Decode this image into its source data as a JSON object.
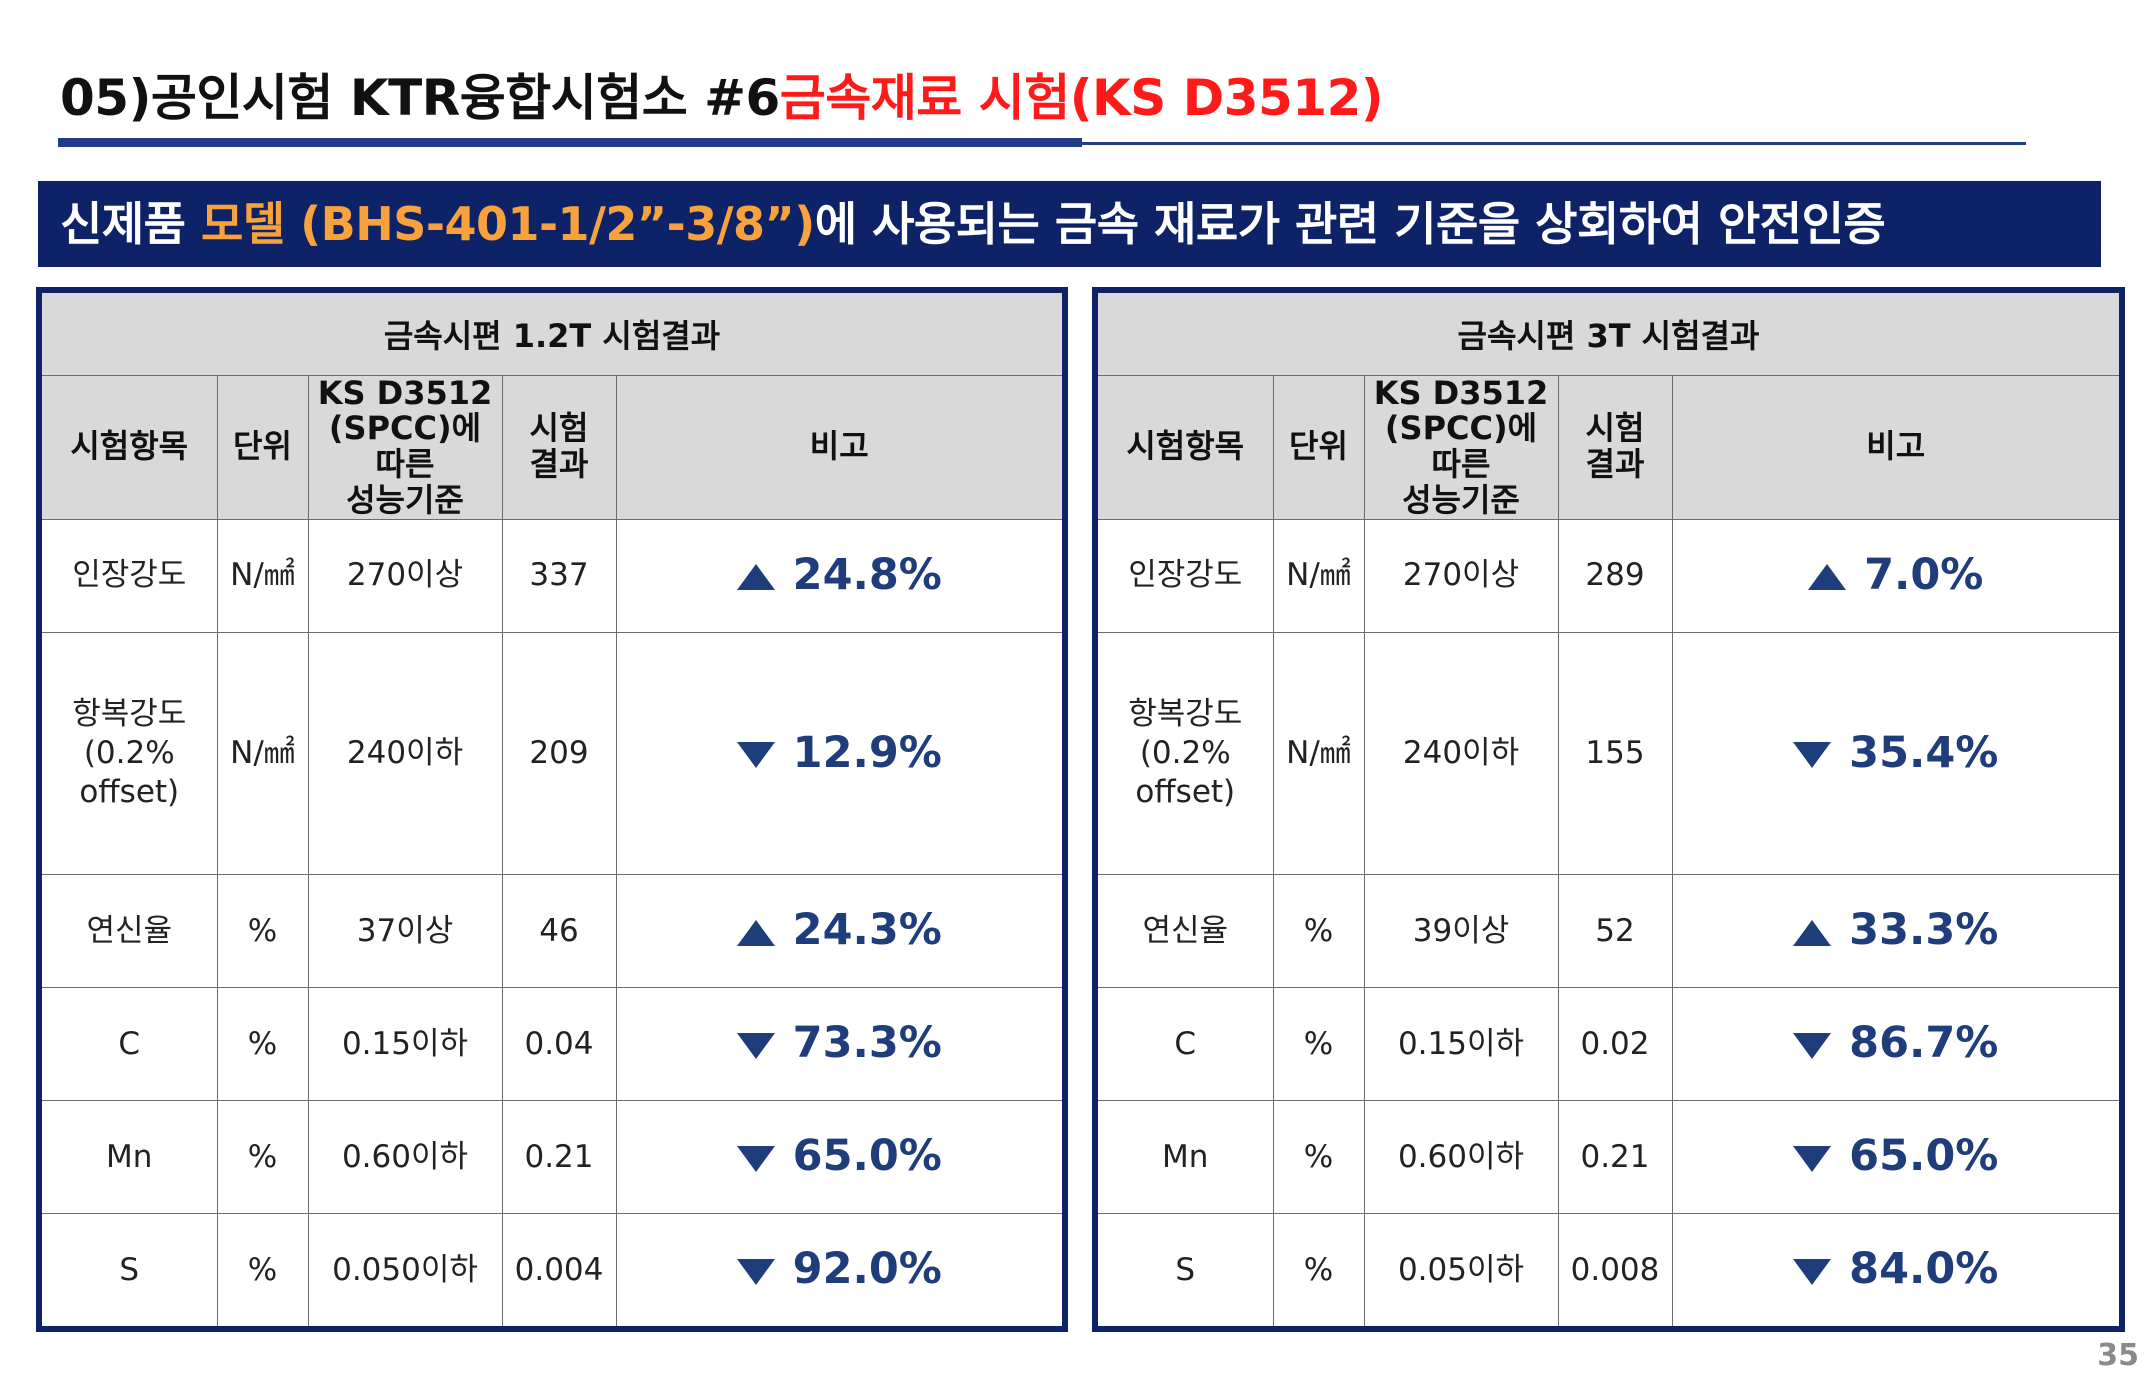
{
  "title": {
    "prefix": "05)공인시험 KTR융합시험소 #6",
    "highlight": "금속재료 시험(KS D3512)"
  },
  "banner": {
    "part1": "신제품 ",
    "model": "모델 (BHS-401-1/2”-3/8”)",
    "part2": "에 사용되는 금속 재료가 관련 기준을 상회하여 안전인증"
  },
  "columns": {
    "item": "시험항목",
    "unit": "단위",
    "std_line1": "KS D3512",
    "std_line2": "(SPCC)에 따른",
    "std_line3": "성능기준",
    "result_line1": "시험",
    "result_line2": "결과",
    "note": "비고"
  },
  "tables": [
    {
      "caption": "금속시편 1.2T 시험결과",
      "rows": [
        {
          "item": "인장강도",
          "sub": "",
          "unit": "N/㎟",
          "std": "270이상",
          "result": "337",
          "dir": "up",
          "pct": "24.8%"
        },
        {
          "item": "항복강도",
          "sub": "(0.2% offset)",
          "unit": "N/㎟",
          "std": "240이하",
          "result": "209",
          "dir": "down",
          "pct": "12.9%"
        },
        {
          "item": "연신율",
          "sub": "",
          "unit": "%",
          "std": "37이상",
          "result": "46",
          "dir": "up",
          "pct": "24.3%"
        },
        {
          "item": "C",
          "sub": "",
          "unit": "%",
          "std": "0.15이하",
          "result": "0.04",
          "dir": "down",
          "pct": "73.3%"
        },
        {
          "item": "Mn",
          "sub": "",
          "unit": "%",
          "std": "0.60이하",
          "result": "0.21",
          "dir": "down",
          "pct": "65.0%"
        },
        {
          "item": "S",
          "sub": "",
          "unit": "%",
          "std": "0.050이하",
          "result": "0.004",
          "dir": "down",
          "pct": "92.0%"
        }
      ]
    },
    {
      "caption": "금속시편 3T 시험결과",
      "rows": [
        {
          "item": "인장강도",
          "sub": "",
          "unit": "N/㎟",
          "std": "270이상",
          "result": "289",
          "dir": "up",
          "pct": "7.0%"
        },
        {
          "item": "항복강도",
          "sub": "(0.2% offset)",
          "unit": "N/㎟",
          "std": "240이하",
          "result": "155",
          "dir": "down",
          "pct": "35.4%"
        },
        {
          "item": "연신율",
          "sub": "",
          "unit": "%",
          "std": "39이상",
          "result": "52",
          "dir": "up",
          "pct": "33.3%"
        },
        {
          "item": "C",
          "sub": "",
          "unit": "%",
          "std": "0.15이하",
          "result": "0.02",
          "dir": "down",
          "pct": "86.7%"
        },
        {
          "item": "Mn",
          "sub": "",
          "unit": "%",
          "std": "0.60이하",
          "result": "0.21",
          "dir": "down",
          "pct": "65.0%"
        },
        {
          "item": "S",
          "sub": "",
          "unit": "%",
          "std": "0.05이하",
          "result": "0.008",
          "dir": "down",
          "pct": "84.0%"
        }
      ]
    }
  ],
  "page_number": "35",
  "colors": {
    "navy": "#0e2367",
    "title_red": "#ff1a1a",
    "model_orange": "#f7a23d",
    "pct_blue": "#1f3d7a"
  }
}
